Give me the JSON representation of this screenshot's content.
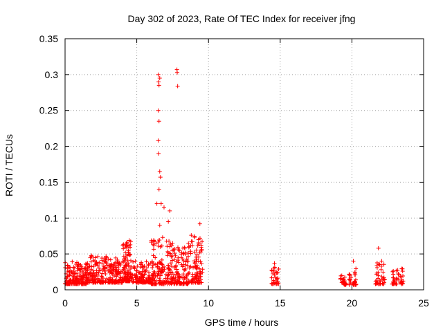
{
  "chart_data": {
    "type": "scatter",
    "title": "Day 302 of 2023, Rate Of TEC Index for receiver jfng",
    "xlabel": "GPS time / hours",
    "ylabel": "ROTI / TECUs",
    "xlim": [
      0,
      25
    ],
    "ylim": [
      0,
      0.35
    ],
    "x_ticks": [
      0,
      5,
      10,
      15,
      20,
      25
    ],
    "y_ticks": [
      0,
      0.05,
      0.1,
      0.15,
      0.2,
      0.25,
      0.3,
      0.35
    ],
    "x_tick_labels": [
      "0",
      "5",
      "10",
      "15",
      "20",
      "25"
    ],
    "y_tick_labels": [
      "0",
      "0.05",
      "0.1",
      "0.15",
      "0.2",
      "0.25",
      "0.3",
      "0.35"
    ],
    "grid": true,
    "marker": "+",
    "color": "#ff0000",
    "highlights": [
      {
        "x": 6.5,
        "y": 0.3
      },
      {
        "x": 6.52,
        "y": 0.29
      },
      {
        "x": 6.55,
        "y": 0.285
      },
      {
        "x": 6.6,
        "y": 0.295
      },
      {
        "x": 7.8,
        "y": 0.307
      },
      {
        "x": 7.82,
        "y": 0.303
      },
      {
        "x": 7.85,
        "y": 0.284
      },
      {
        "x": 6.5,
        "y": 0.25
      },
      {
        "x": 6.55,
        "y": 0.235
      },
      {
        "x": 6.5,
        "y": 0.208
      },
      {
        "x": 6.52,
        "y": 0.19
      },
      {
        "x": 6.6,
        "y": 0.165
      },
      {
        "x": 6.65,
        "y": 0.157
      },
      {
        "x": 6.55,
        "y": 0.14
      },
      {
        "x": 6.4,
        "y": 0.12
      },
      {
        "x": 6.7,
        "y": 0.12
      },
      {
        "x": 6.9,
        "y": 0.115
      },
      {
        "x": 7.3,
        "y": 0.11
      },
      {
        "x": 7.2,
        "y": 0.095
      },
      {
        "x": 6.6,
        "y": 0.09
      },
      {
        "x": 6.8,
        "y": 0.073
      },
      {
        "x": 9.4,
        "y": 0.092
      },
      {
        "x": 21.85,
        "y": 0.058
      },
      {
        "x": 20.1,
        "y": 0.04
      },
      {
        "x": 14.6,
        "y": 0.037
      }
    ],
    "clusters": [
      {
        "x_start": 0.0,
        "x_end": 1.5,
        "y_base": 0.008,
        "y_top": 0.04,
        "density": 180
      },
      {
        "x_start": 1.5,
        "x_end": 3.0,
        "y_base": 0.01,
        "y_top": 0.05,
        "density": 150
      },
      {
        "x_start": 3.0,
        "x_end": 4.0,
        "y_base": 0.01,
        "y_top": 0.045,
        "density": 110
      },
      {
        "x_start": 4.0,
        "x_end": 4.6,
        "y_base": 0.012,
        "y_top": 0.07,
        "density": 110
      },
      {
        "x_start": 4.6,
        "x_end": 6.0,
        "y_base": 0.01,
        "y_top": 0.04,
        "density": 120
      },
      {
        "x_start": 6.0,
        "x_end": 7.5,
        "y_base": 0.008,
        "y_top": 0.07,
        "density": 160
      },
      {
        "x_start": 7.5,
        "x_end": 8.6,
        "y_base": 0.008,
        "y_top": 0.06,
        "density": 110
      },
      {
        "x_start": 8.6,
        "x_end": 9.6,
        "y_base": 0.01,
        "y_top": 0.08,
        "density": 100
      },
      {
        "x_start": 14.4,
        "x_end": 14.9,
        "y_base": 0.008,
        "y_top": 0.035,
        "density": 35
      },
      {
        "x_start": 19.2,
        "x_end": 19.6,
        "y_base": 0.007,
        "y_top": 0.02,
        "density": 25
      },
      {
        "x_start": 19.8,
        "x_end": 20.3,
        "y_base": 0.007,
        "y_top": 0.03,
        "density": 30
      },
      {
        "x_start": 21.6,
        "x_end": 22.3,
        "y_base": 0.008,
        "y_top": 0.04,
        "density": 40
      },
      {
        "x_start": 22.8,
        "x_end": 23.6,
        "y_base": 0.008,
        "y_top": 0.03,
        "density": 45
      }
    ]
  }
}
